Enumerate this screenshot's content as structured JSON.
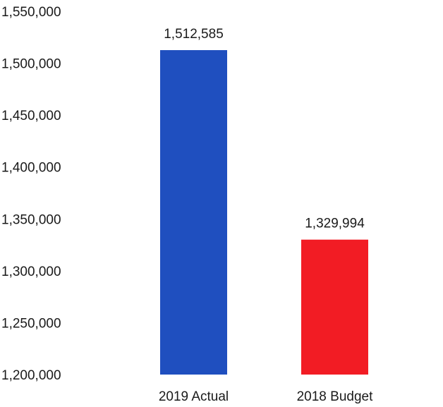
{
  "chart_data": {
    "type": "bar",
    "title": "",
    "xlabel": "",
    "ylabel": "",
    "categories": [
      "2019 Actual",
      "2018 Budget"
    ],
    "values": [
      1512585,
      1329994
    ],
    "data_labels": [
      "1,512,585",
      "1,329,994"
    ],
    "bar_colors": [
      "#1f4fbf",
      "#f21c24"
    ],
    "ylim": [
      1200000,
      1550000
    ],
    "yticks": [
      1200000,
      1250000,
      1300000,
      1350000,
      1400000,
      1450000,
      1500000,
      1550000
    ],
    "ytick_labels": [
      "1,200,000",
      "1,250,000",
      "1,300,000",
      "1,350,000",
      "1,400,000",
      "1,450,000",
      "1,500,000",
      "1,550,000"
    ],
    "grid": false,
    "legend": "none"
  }
}
